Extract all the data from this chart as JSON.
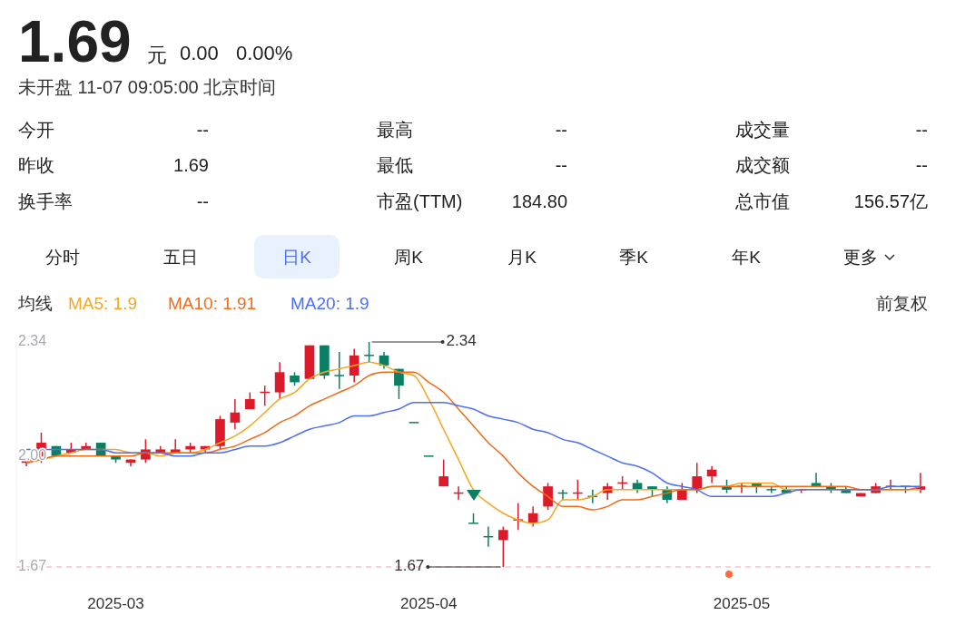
{
  "chart_data": [
    {
      "type": "other",
      "annotations": [
        "1.69",
        "元",
        "0.00",
        "0.00%",
        "未开盘 11-07 09:05:00 北京时间",
        "今开",
        "--",
        "昨收",
        "1.69",
        "换手率",
        "--",
        "最高",
        "--",
        "最低",
        "--",
        "市盈(TTM)",
        "184.80",
        "成交量",
        "--",
        "成交额",
        "--",
        "总市值",
        "156.57亿",
        "分时",
        "五日",
        "日K",
        "周K",
        "月K",
        "季K",
        "年K",
        "更多"
      ]
    },
    {
      "type": "candlestick",
      "legend_title": "均线",
      "legend": "top left",
      "categories": [
        null,
        null,
        null,
        null,
        null,
        null,
        "2025-03",
        null,
        null,
        null,
        null,
        null,
        null,
        null,
        null,
        null,
        null,
        null,
        null,
        null,
        null,
        null,
        null,
        null,
        null,
        null,
        null,
        "2025-04",
        null,
        null,
        null,
        null,
        null,
        null,
        null,
        null,
        null,
        null,
        null,
        null,
        null,
        null,
        null,
        null,
        null,
        null,
        null,
        null,
        "2025-05",
        null,
        null,
        null,
        null,
        null,
        null,
        null,
        null,
        null,
        null,
        null,
        null
      ],
      "ohlc": [
        [
          1.98,
          1.99,
          1.97,
          1.99
        ],
        [
          2.0,
          2.07,
          1.98,
          2.04
        ],
        [
          2.03,
          2.03,
          2.0,
          2.0
        ],
        [
          2.01,
          2.04,
          2.01,
          2.02
        ],
        [
          2.02,
          2.04,
          2.02,
          2.03
        ],
        [
          2.04,
          2.04,
          2.0,
          2.0
        ],
        [
          2.0,
          2.0,
          1.98,
          1.99
        ],
        [
          1.98,
          1.99,
          1.97,
          1.99
        ],
        [
          1.99,
          2.05,
          1.98,
          2.02
        ],
        [
          2.01,
          2.03,
          2.01,
          2.02
        ],
        [
          2.01,
          2.05,
          2.01,
          2.02
        ],
        [
          2.02,
          2.04,
          2.01,
          2.03
        ],
        [
          2.02,
          2.03,
          2.01,
          2.03
        ],
        [
          2.03,
          2.12,
          2.02,
          2.11
        ],
        [
          2.1,
          2.17,
          2.08,
          2.13
        ],
        [
          2.14,
          2.19,
          2.14,
          2.17
        ],
        [
          2.19,
          2.21,
          2.15,
          2.19
        ],
        [
          2.19,
          2.28,
          2.17,
          2.25
        ],
        [
          2.24,
          2.25,
          2.21,
          2.22
        ],
        [
          2.23,
          2.33,
          2.23,
          2.33
        ],
        [
          2.33,
          2.33,
          2.23,
          2.24
        ],
        [
          2.24,
          2.31,
          2.2,
          2.24
        ],
        [
          2.24,
          2.32,
          2.22,
          2.3
        ],
        [
          2.3,
          2.34,
          2.28,
          2.3
        ],
        [
          2.3,
          2.31,
          2.26,
          2.27
        ],
        [
          2.26,
          2.26,
          2.17,
          2.21
        ],
        [
          2.1,
          2.1,
          2.1,
          2.1
        ],
        [
          2.0,
          2.0,
          2.0,
          2.0
        ],
        [
          1.91,
          1.99,
          1.91,
          1.94
        ],
        [
          1.89,
          1.91,
          1.87,
          1.89
        ],
        [
          1.8,
          1.83,
          1.8,
          1.8
        ],
        [
          1.76,
          1.79,
          1.73,
          1.76
        ],
        [
          1.75,
          1.79,
          1.67,
          1.78
        ],
        [
          1.81,
          1.86,
          1.78,
          1.81
        ],
        [
          1.8,
          1.85,
          1.79,
          1.83
        ],
        [
          1.85,
          1.92,
          1.84,
          1.91
        ],
        [
          1.89,
          1.9,
          1.87,
          1.89
        ],
        [
          1.89,
          1.93,
          1.87,
          1.89
        ],
        [
          1.88,
          1.9,
          1.86,
          1.88
        ],
        [
          1.89,
          1.92,
          1.87,
          1.91
        ],
        [
          1.92,
          1.94,
          1.9,
          1.92
        ],
        [
          1.92,
          1.93,
          1.89,
          1.9
        ],
        [
          1.91,
          1.91,
          1.88,
          1.9
        ],
        [
          1.9,
          1.91,
          1.86,
          1.87
        ],
        [
          1.87,
          1.92,
          1.87,
          1.9
        ],
        [
          1.9,
          1.98,
          1.89,
          1.94
        ],
        [
          1.94,
          1.97,
          1.92,
          1.96
        ],
        [
          1.91,
          1.93,
          1.89,
          1.9
        ],
        [
          1.91,
          1.92,
          1.89,
          1.91
        ],
        [
          1.92,
          1.92,
          1.89,
          1.91
        ],
        [
          1.9,
          1.91,
          1.89,
          1.9
        ],
        [
          1.9,
          1.91,
          1.89,
          1.89
        ],
        [
          1.9,
          1.9,
          1.89,
          1.9
        ],
        [
          1.92,
          1.95,
          1.91,
          1.91
        ],
        [
          1.91,
          1.92,
          1.89,
          1.9
        ],
        [
          1.9,
          1.91,
          1.89,
          1.89
        ],
        [
          1.88,
          1.89,
          1.88,
          1.89
        ],
        [
          1.89,
          1.92,
          1.89,
          1.91
        ],
        [
          1.91,
          1.93,
          1.9,
          1.91
        ],
        [
          1.91,
          1.91,
          1.89,
          1.91
        ],
        [
          1.9,
          1.95,
          1.89,
          1.91
        ]
      ],
      "colors": [
        "#dd1a2a",
        "#dd1a2a",
        "#0b7f63",
        "#dd1a2a",
        "#dd1a2a",
        "#0b7f63",
        "#0b7f63",
        "#dd1a2a",
        "#dd1a2a",
        "#dd1a2a",
        "#dd1a2a",
        "#dd1a2a",
        "#dd1a2a",
        "#dd1a2a",
        "#dd1a2a",
        "#dd1a2a",
        "#dd1a2a",
        "#dd1a2a",
        "#0b7f63",
        "#dd1a2a",
        "#0b7f63",
        "#0b7f63",
        "#dd1a2a",
        "#0b7f63",
        "#0b7f63",
        "#0b7f63",
        "#0b7f63",
        "#0b7f63",
        "#dd1a2a",
        "#dd1a2a",
        "#0b7f63",
        "#0b7f63",
        "#dd1a2a",
        "#dd1a2a",
        "#dd1a2a",
        "#dd1a2a",
        "#0b7f63",
        "#dd1a2a",
        "#0b7f63",
        "#dd1a2a",
        "#dd1a2a",
        "#0b7f63",
        "#0b7f63",
        "#0b7f63",
        "#dd1a2a",
        "#dd1a2a",
        "#dd1a2a",
        "#0b7f63",
        "#dd1a2a",
        "#0b7f63",
        "#0b7f63",
        "#0b7f63",
        "#dd1a2a",
        "#0b7f63",
        "#0b7f63",
        "#0b7f63",
        "#dd1a2a",
        "#dd1a2a",
        "#dd1a2a",
        "#0b7f63",
        "#dd1a2a"
      ],
      "series": [
        {
          "type": "line",
          "name": "MA5: 1.9",
          "color": "#f5a623",
          "values": [
            1.98,
            1.99,
            2.0,
            2.01,
            2.02,
            2.02,
            2.02,
            2.01,
            2.01,
            2.0,
            2.01,
            2.01,
            2.02,
            2.04,
            2.06,
            2.09,
            2.13,
            2.17,
            2.19,
            2.23,
            2.25,
            2.26,
            2.27,
            2.28,
            2.27,
            2.25,
            2.24,
            2.17,
            2.08,
            1.99,
            1.9,
            1.86,
            1.83,
            1.81,
            1.8,
            1.81,
            1.87,
            1.87,
            1.88,
            1.9,
            1.9,
            1.9,
            1.9,
            1.9,
            1.9,
            1.9,
            1.91,
            1.91,
            1.92,
            1.92,
            1.92,
            1.9,
            1.9,
            1.9,
            1.9,
            1.9,
            1.9,
            1.9,
            1.9,
            1.9,
            1.9
          ]
        },
        {
          "type": "line",
          "name": "MA10: 1.91",
          "color": "#ef6c1a",
          "values": [
            1.98,
            1.99,
            2.0,
            2.0,
            2.0,
            2.0,
            2.0,
            2.0,
            2.01,
            2.01,
            2.01,
            2.01,
            2.01,
            2.02,
            2.03,
            2.05,
            2.07,
            2.1,
            2.12,
            2.15,
            2.17,
            2.19,
            2.21,
            2.24,
            2.25,
            2.25,
            2.25,
            2.22,
            2.19,
            2.14,
            2.09,
            2.04,
            2.0,
            1.95,
            1.91,
            1.88,
            1.85,
            1.85,
            1.84,
            1.85,
            1.87,
            1.87,
            1.88,
            1.89,
            1.9,
            1.9,
            1.91,
            1.91,
            1.91,
            1.91,
            1.91,
            1.91,
            1.91,
            1.91,
            1.91,
            1.91,
            1.9,
            1.9,
            1.9,
            1.9,
            1.91
          ]
        },
        {
          "type": "line",
          "name": "MA20: 1.9",
          "color": "#4d6ff0",
          "values": [
            2.02,
            2.02,
            2.02,
            2.02,
            2.02,
            2.02,
            2.01,
            2.01,
            2.01,
            2.01,
            2.0,
            2.0,
            2.01,
            2.01,
            2.02,
            2.03,
            2.03,
            2.04,
            2.06,
            2.08,
            2.09,
            2.1,
            2.12,
            2.12,
            2.13,
            2.14,
            2.16,
            2.16,
            2.16,
            2.15,
            2.14,
            2.12,
            2.11,
            2.1,
            2.08,
            2.07,
            2.05,
            2.04,
            2.02,
            2.0,
            1.98,
            1.97,
            1.95,
            1.92,
            1.91,
            1.9,
            1.88,
            1.88,
            1.88,
            1.88,
            1.88,
            1.89,
            1.9,
            1.9,
            1.9,
            1.9,
            1.9,
            1.9,
            1.91,
            1.91,
            1.91
          ]
        }
      ],
      "ylim": [
        1.67,
        2.34
      ],
      "yticks": [
        2.34,
        {
          "value": 2,
          "label": "2.00"
        },
        1.67
      ],
      "ref_lines": [
        {
          "axis": "y",
          "value": 1.67,
          "color": "#f0a8b0",
          "line_style": "dashed"
        }
      ],
      "annotations": [
        "前复权",
        "2.34",
        {
          "text": "1.67",
          "y": 1.67
        }
      ]
    }
  ]
}
